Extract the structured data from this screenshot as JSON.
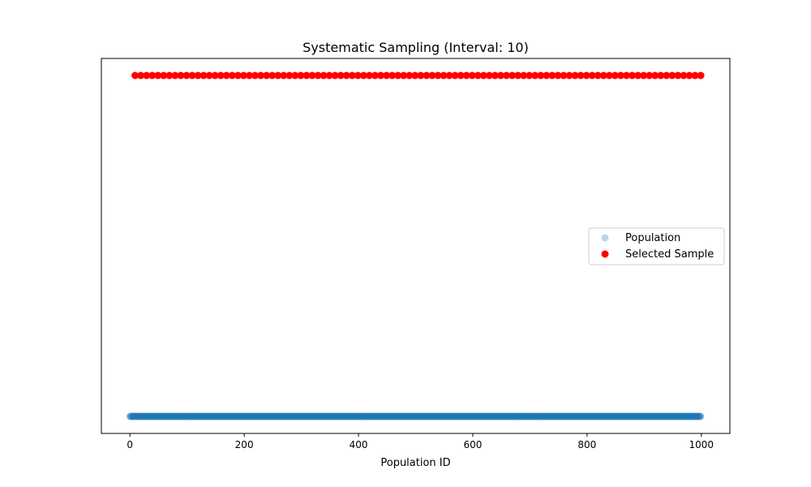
{
  "chart_data": {
    "type": "scatter",
    "title": "Systematic Sampling (Interval: 10)",
    "xlabel": "Population ID",
    "ylabel": "",
    "xlim": [
      -50,
      1050
    ],
    "ylim": [
      -0.05,
      1.05
    ],
    "xticks": [
      0,
      200,
      400,
      600,
      800,
      1000
    ],
    "yticks_visible": false,
    "grid": false,
    "legend_position": "center-right",
    "series": [
      {
        "name": "Population",
        "color": "#1f77b4",
        "alpha": 0.3,
        "y": 0,
        "x_start": 0,
        "x_end": 999,
        "x_step": 1
      },
      {
        "name": "Selected Sample",
        "color": "#ff0000",
        "alpha": 1.0,
        "y": 1,
        "x_start": 9,
        "x_end": 999,
        "x_step": 10
      }
    ]
  }
}
